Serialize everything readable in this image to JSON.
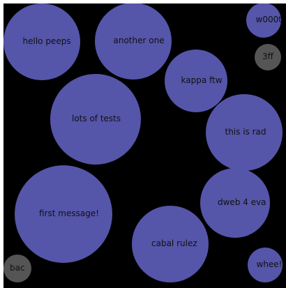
{
  "colors": {
    "background": "#000000",
    "bubble_primary": "#5555aa",
    "bubble_dim": "#555555",
    "label": "#111111"
  },
  "bubbles": [
    {
      "label": "hello peeps",
      "color": "#5555aa"
    },
    {
      "label": "another one",
      "color": "#5555aa"
    },
    {
      "label": "w000t",
      "color": "#5555aa"
    },
    {
      "label": "3ff",
      "color": "#555555"
    },
    {
      "label": "kappa ftw",
      "color": "#5555aa"
    },
    {
      "label": "lots of tests",
      "color": "#5555aa"
    },
    {
      "label": "this is rad",
      "color": "#5555aa"
    },
    {
      "label": "first message!",
      "color": "#5555aa"
    },
    {
      "label": "dweb 4 eva",
      "color": "#5555aa"
    },
    {
      "label": "cabal rulez",
      "color": "#5555aa"
    },
    {
      "label": "bac",
      "color": "#555555"
    },
    {
      "label": "whee!",
      "color": "#5555aa"
    }
  ]
}
